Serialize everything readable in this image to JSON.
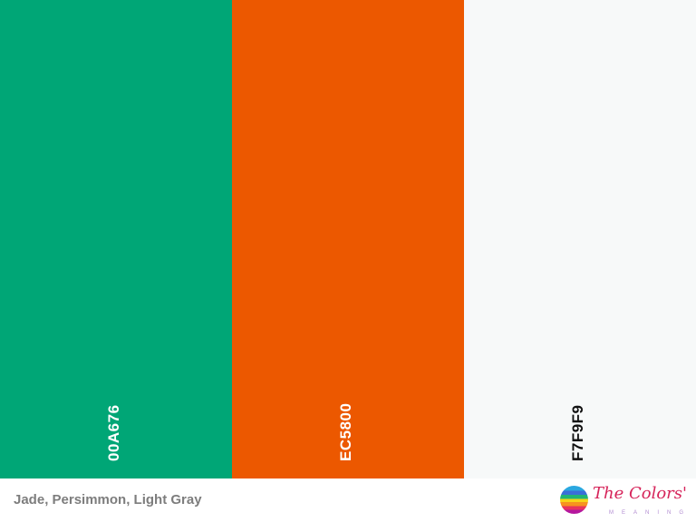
{
  "swatches": [
    {
      "hex": "00A676",
      "color": "#00A676",
      "text_color": "#ffffff"
    },
    {
      "hex": "EC5800",
      "color": "#EC5800",
      "text_color": "#ffffff"
    },
    {
      "hex": "F7F9F9",
      "color": "#F7F9F9",
      "text_color": "#111111"
    }
  ],
  "caption": "Jade, Persimmon, Light Gray",
  "logo": {
    "title": "The Colors'",
    "subtitle": "MEANING"
  }
}
